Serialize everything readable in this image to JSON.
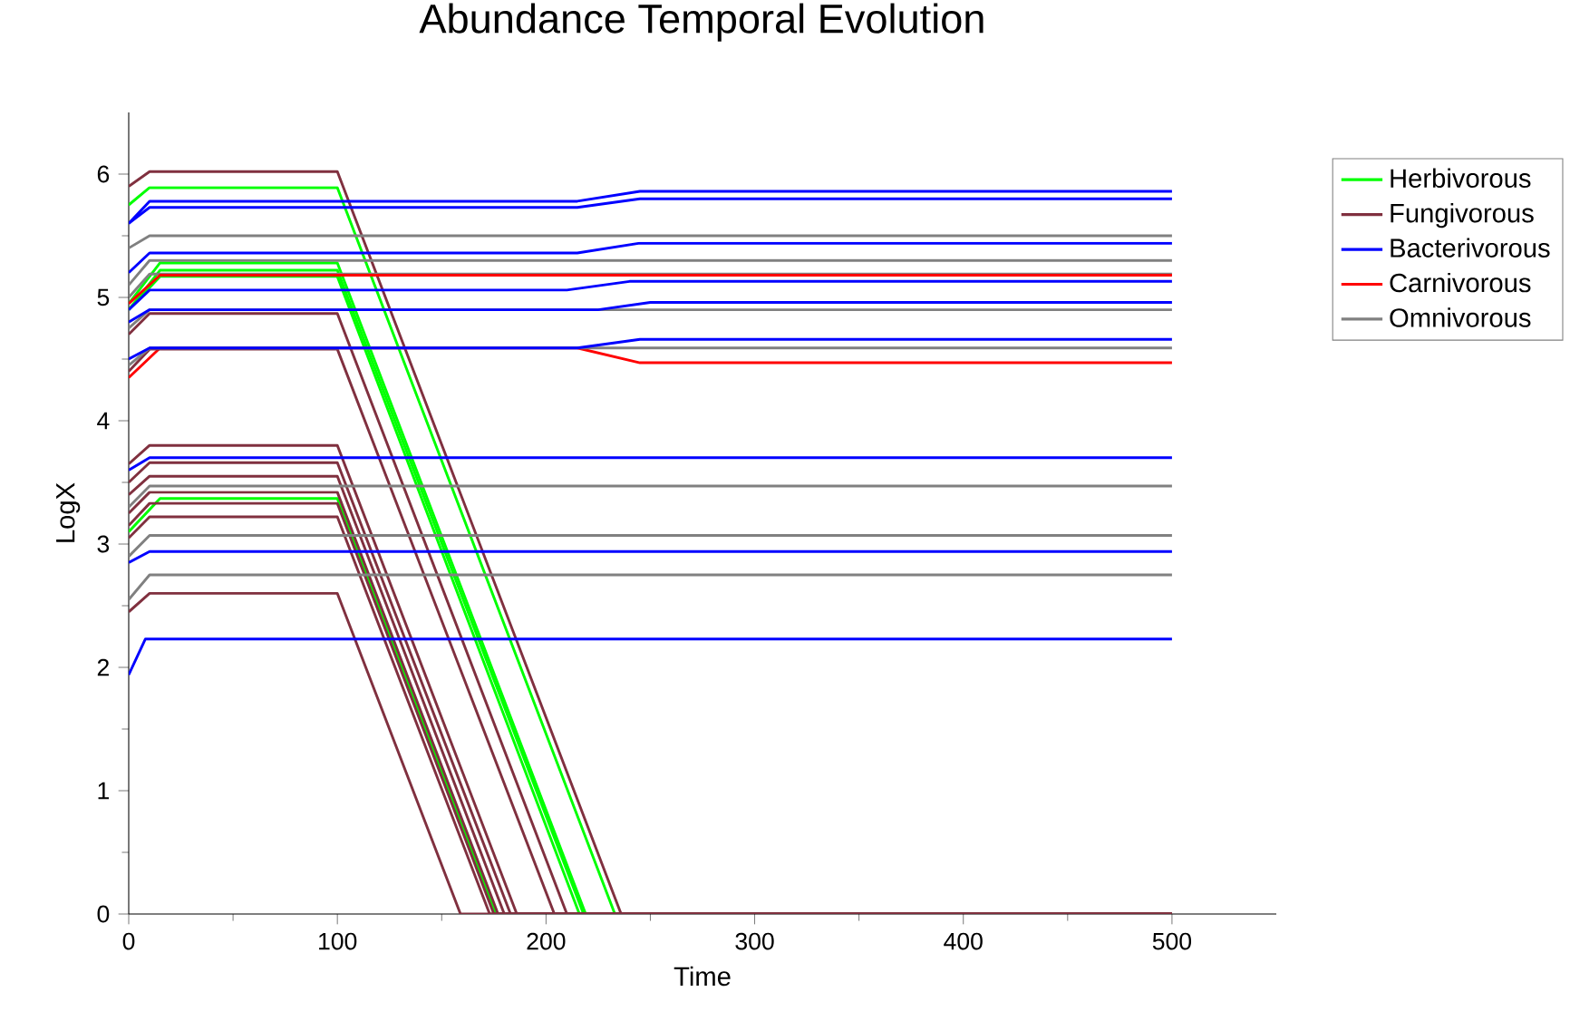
{
  "chart_data": {
    "type": "line",
    "title": "Abundance Temporal Evolution",
    "xlabel": "Time",
    "ylabel": "LogX",
    "xlim": [
      0,
      550
    ],
    "ylim": [
      0,
      6.5
    ],
    "xticks": [
      0,
      100,
      200,
      300,
      400,
      500
    ],
    "yticks": [
      0,
      1,
      2,
      3,
      4,
      5,
      6
    ],
    "legend": "right",
    "series": [
      {
        "name": "Herbivorous",
        "color": "#00ff00",
        "x": [
          0,
          10,
          100,
          233,
          500
        ],
        "values": [
          5.75,
          5.89,
          5.89,
          0,
          0
        ]
      },
      {
        "name": "Fungivorous",
        "color": "#80303f",
        "x": [
          0,
          10,
          100,
          236,
          500
        ],
        "values": [
          5.9,
          6.02,
          6.02,
          0,
          0
        ]
      },
      {
        "name": "Bacterivorous",
        "color": "#0000ff",
        "x": [
          0,
          10,
          215,
          245,
          500
        ],
        "values": [
          5.6,
          5.78,
          5.78,
          5.86,
          5.86
        ]
      },
      {
        "name": "Carnivorous",
        "color": "#ff0000",
        "x": [
          0,
          15,
          215,
          245,
          500
        ],
        "values": [
          4.35,
          4.59,
          4.59,
          4.47,
          4.47
        ]
      },
      {
        "name": "Omnivorous",
        "color": "#808080",
        "x": [
          0,
          10,
          500
        ],
        "values": [
          5.4,
          5.5,
          5.5
        ]
      },
      {
        "color": "#00ff00",
        "x": [
          0,
          15,
          100,
          219,
          500
        ],
        "values": [
          4.95,
          5.28,
          5.28,
          0,
          0
        ]
      },
      {
        "color": "#00ff00",
        "x": [
          0,
          15,
          100,
          218,
          500
        ],
        "values": [
          4.9,
          5.22,
          5.22,
          0,
          0
        ]
      },
      {
        "color": "#00ff00",
        "x": [
          0,
          15,
          100,
          216,
          500
        ],
        "values": [
          4.9,
          5.17,
          5.17,
          0,
          0
        ]
      },
      {
        "color": "#00ff00",
        "x": [
          0,
          15,
          100,
          176,
          500
        ],
        "values": [
          3.1,
          3.37,
          3.37,
          0,
          0
        ]
      },
      {
        "color": "#80303f",
        "x": [
          0,
          10,
          100,
          210,
          500
        ],
        "values": [
          4.7,
          4.87,
          4.87,
          0,
          0
        ]
      },
      {
        "color": "#80303f",
        "x": [
          0,
          10,
          100,
          204,
          500
        ],
        "values": [
          4.4,
          4.58,
          4.58,
          0,
          0
        ]
      },
      {
        "color": "#80303f",
        "x": [
          0,
          10,
          100,
          186,
          500
        ],
        "values": [
          3.65,
          3.8,
          3.8,
          0,
          0
        ]
      },
      {
        "color": "#80303f",
        "x": [
          0,
          10,
          100,
          183,
          500
        ],
        "values": [
          3.5,
          3.66,
          3.66,
          0,
          0
        ]
      },
      {
        "color": "#80303f",
        "x": [
          0,
          10,
          100,
          180,
          500
        ],
        "values": [
          3.4,
          3.55,
          3.55,
          0,
          0
        ]
      },
      {
        "color": "#80303f",
        "x": [
          0,
          10,
          100,
          177,
          500
        ],
        "values": [
          3.25,
          3.42,
          3.42,
          0,
          0
        ]
      },
      {
        "color": "#80303f",
        "x": [
          0,
          10,
          100,
          175,
          500
        ],
        "values": [
          3.15,
          3.33,
          3.33,
          0,
          0
        ]
      },
      {
        "color": "#80303f",
        "x": [
          0,
          10,
          100,
          173,
          500
        ],
        "values": [
          3.05,
          3.22,
          3.22,
          0,
          0
        ]
      },
      {
        "color": "#80303f",
        "x": [
          0,
          10,
          100,
          159,
          500
        ],
        "values": [
          2.45,
          2.6,
          2.6,
          0,
          0
        ]
      },
      {
        "color": "#808080",
        "x": [
          0,
          10,
          500
        ],
        "values": [
          5.1,
          5.3,
          5.3
        ]
      },
      {
        "color": "#808080",
        "x": [
          0,
          10,
          500
        ],
        "values": [
          5.0,
          5.19,
          5.19
        ]
      },
      {
        "color": "#808080",
        "x": [
          0,
          10,
          500
        ],
        "values": [
          4.75,
          4.9,
          4.9
        ]
      },
      {
        "color": "#808080",
        "x": [
          0,
          10,
          500
        ],
        "values": [
          4.45,
          4.59,
          4.59
        ]
      },
      {
        "color": "#808080",
        "x": [
          0,
          10,
          500
        ],
        "values": [
          3.3,
          3.47,
          3.47
        ]
      },
      {
        "color": "#808080",
        "x": [
          0,
          10,
          500
        ],
        "values": [
          2.9,
          3.07,
          3.07
        ]
      },
      {
        "color": "#808080",
        "x": [
          0,
          10,
          500
        ],
        "values": [
          2.55,
          2.75,
          2.75
        ]
      },
      {
        "color": "#ff0000",
        "x": [
          0,
          15,
          500
        ],
        "values": [
          4.95,
          5.18,
          5.18
        ]
      },
      {
        "color": "#0000ff",
        "x": [
          0,
          10,
          215,
          245,
          500
        ],
        "values": [
          5.6,
          5.73,
          5.73,
          5.8,
          5.8
        ]
      },
      {
        "color": "#0000ff",
        "x": [
          0,
          10,
          215,
          245,
          500
        ],
        "values": [
          5.2,
          5.36,
          5.36,
          5.44,
          5.44
        ]
      },
      {
        "color": "#0000ff",
        "x": [
          0,
          10,
          210,
          240,
          500
        ],
        "values": [
          4.9,
          5.06,
          5.06,
          5.13,
          5.13
        ]
      },
      {
        "color": "#0000ff",
        "x": [
          0,
          10,
          225,
          250,
          500
        ],
        "values": [
          4.8,
          4.9,
          4.9,
          4.96,
          4.96
        ]
      },
      {
        "color": "#0000ff",
        "x": [
          0,
          10,
          215,
          245,
          500
        ],
        "values": [
          4.5,
          4.59,
          4.59,
          4.66,
          4.66
        ]
      },
      {
        "color": "#0000ff",
        "x": [
          0,
          10,
          500
        ],
        "values": [
          3.6,
          3.7,
          3.7
        ]
      },
      {
        "color": "#0000ff",
        "x": [
          0,
          10,
          500
        ],
        "values": [
          2.85,
          2.94,
          2.94
        ]
      },
      {
        "color": "#0000ff",
        "x": [
          0,
          8,
          500
        ],
        "values": [
          1.94,
          2.23,
          2.23
        ]
      }
    ]
  }
}
